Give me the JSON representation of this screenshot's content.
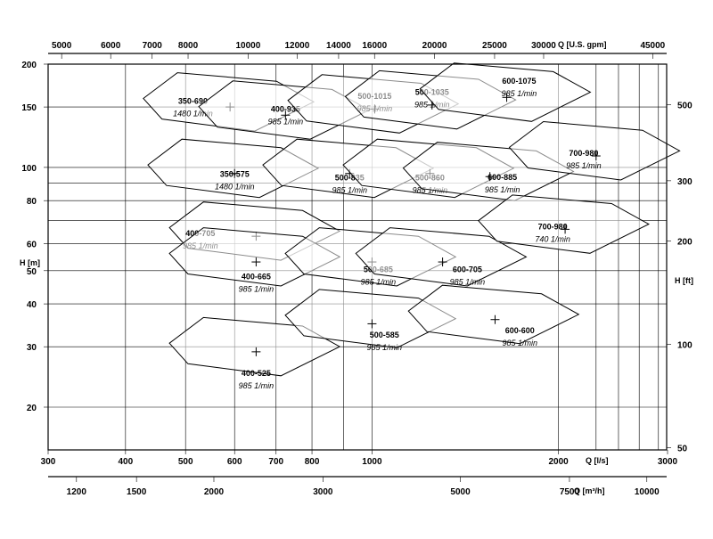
{
  "chart_data": {
    "type": "scatter",
    "title": "",
    "axes": {
      "bottom": {
        "label": "Q [l/s]",
        "scale": "log",
        "range": [
          300,
          3000
        ],
        "ticks": [
          "300",
          "400",
          "500",
          "600",
          "700",
          "800",
          "1000",
          "2000",
          "3000"
        ]
      },
      "bottom2": {
        "label": "Q [m³/h]",
        "scale": "log",
        "ticks": [
          "1200",
          "1500",
          "2000",
          "3000",
          "5000",
          "7500",
          "10000"
        ]
      },
      "top": {
        "label": "Q [U.S. gpm]",
        "scale": "log",
        "ticks": [
          "5000",
          "6000",
          "7000",
          "8000",
          "10000",
          "12000",
          "14000",
          "16000",
          "20000",
          "25000",
          "30000",
          "45000"
        ]
      },
      "left": {
        "label": "H [m]",
        "scale": "log",
        "range": [
          15,
          200
        ],
        "ticks": [
          "20",
          "30",
          "40",
          "50",
          "60",
          "80",
          "100",
          "150",
          "200"
        ]
      },
      "right": {
        "label": "H [ft]",
        "scale": "log",
        "ticks": [
          "50",
          "100",
          "200",
          "300",
          "500"
        ]
      }
    },
    "grid": true,
    "regions": [
      {
        "name": "350-690",
        "speed": "1480  1/min",
        "bep": [
          590,
          150
        ]
      },
      {
        "name": "400-935",
        "speed": "985  1/min",
        "bep": [
          725,
          142
        ]
      },
      {
        "name": "500-1015",
        "speed": "985  1/min",
        "bep": [
          1010,
          148
        ]
      },
      {
        "name": "500-1035",
        "speed": "985  1/min",
        "bep": [
          1250,
          152
        ]
      },
      {
        "name": "600-1075",
        "speed": "985  1/min",
        "bep": [
          1650,
          160
        ]
      },
      {
        "name": "350-575",
        "speed": "1480  1/min",
        "bep": [
          600,
          96
        ]
      },
      {
        "name": "500-835",
        "speed": "985  1/min",
        "bep": [
          920,
          96
        ]
      },
      {
        "name": "500-860",
        "speed": "985  1/min",
        "bep": [
          1240,
          96
        ]
      },
      {
        "name": "600-885",
        "speed": "985  1/min",
        "bep": [
          1550,
          94
        ]
      },
      {
        "name": "700-980",
        "speed": "985  1/min",
        "bep": [
          2300,
          108
        ]
      },
      {
        "name": "400-705",
        "speed": "985  1/min",
        "bep": [
          650,
          63
        ]
      },
      {
        "name": "400-665",
        "speed": "985  1/min",
        "bep": [
          650,
          53
        ]
      },
      {
        "name": "500-685",
        "speed": "985  1/min",
        "bep": [
          1000,
          53
        ]
      },
      {
        "name": "600-705",
        "speed": "985  1/min",
        "bep": [
          1300,
          53
        ]
      },
      {
        "name": "700-980",
        "speed": "740  1/min",
        "bep": [
          2050,
          66
        ]
      },
      {
        "name": "400-525",
        "speed": "985  1/min",
        "bep": [
          650,
          29
        ]
      },
      {
        "name": "500-585",
        "speed": "985  1/min",
        "bep": [
          1000,
          35
        ]
      },
      {
        "name": "600-600",
        "speed": "985  1/min",
        "bep": [
          1580,
          36
        ]
      }
    ]
  }
}
